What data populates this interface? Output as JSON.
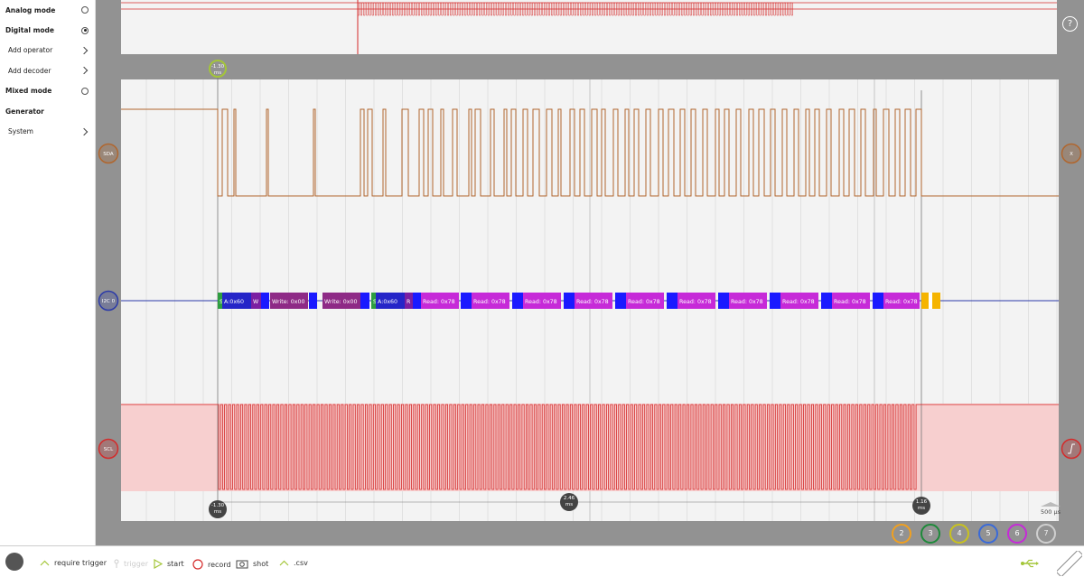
{
  "sidebar": {
    "items": [
      {
        "label": "Analog mode",
        "style": "bold",
        "control": "radio",
        "selected": false
      },
      {
        "label": "Digital mode",
        "style": "bold",
        "control": "radio",
        "selected": true
      },
      {
        "label": "Add operator",
        "style": "sub",
        "control": "chevron"
      },
      {
        "label": "Add decoder",
        "style": "sub",
        "control": "chevron"
      },
      {
        "label": "Mixed mode",
        "style": "bold",
        "control": "radio",
        "selected": false
      },
      {
        "label": "Generator",
        "style": "bold",
        "control": "none"
      },
      {
        "label": "System",
        "style": "sub",
        "control": "chevron"
      }
    ]
  },
  "help_label": "?",
  "channels": {
    "sda": {
      "label": "SDA",
      "color": "#b0662e"
    },
    "i2c": {
      "label": "I2C 0",
      "color": "#2b3aa8"
    },
    "scl": {
      "label": "SCL",
      "color": "#d42a2a"
    },
    "sda_right_label": "X"
  },
  "cursors": {
    "top": {
      "value": "-1.30",
      "unit": "ms"
    },
    "left": {
      "value": "-1.30",
      "unit": "ms"
    },
    "middle": {
      "value": "2.46",
      "unit": "ms"
    },
    "right": {
      "value": "1.16",
      "unit": "ms"
    }
  },
  "decoder_packets": [
    {
      "text": "S",
      "color": "#2e9e40"
    },
    {
      "text": "A:0x60",
      "color": "#2525c8"
    },
    {
      "text": "W",
      "color": "#7b1fa2"
    },
    {
      "text": "",
      "color": "#1a1aff"
    },
    {
      "text": "Write: 0x00",
      "color": "#8e2a86"
    },
    {
      "text": "",
      "color": "#1a1aff"
    },
    {
      "text": "Write: 0x00",
      "color": "#8e2a86"
    },
    {
      "text": "",
      "color": "#1a1aff"
    },
    {
      "text": "S",
      "color": "#2e9e40"
    },
    {
      "text": "A:0x60",
      "color": "#2525c8"
    },
    {
      "text": "R",
      "color": "#7b1fa2"
    },
    {
      "text": "",
      "color": "#1a1aff"
    },
    {
      "text": "Read: 0x78",
      "color": "#c62ad8"
    },
    {
      "text": "",
      "color": "#1a1aff"
    },
    {
      "text": "Read: 0x78",
      "color": "#c62ad8"
    },
    {
      "text": "",
      "color": "#1a1aff"
    },
    {
      "text": "Read: 0x78",
      "color": "#c62ad8"
    },
    {
      "text": "",
      "color": "#1a1aff"
    },
    {
      "text": "Read: 0x78",
      "color": "#c62ad8"
    },
    {
      "text": "",
      "color": "#1a1aff"
    },
    {
      "text": "Read: 0x78",
      "color": "#c62ad8"
    },
    {
      "text": "",
      "color": "#1a1aff"
    },
    {
      "text": "Read: 0x78",
      "color": "#c62ad8"
    },
    {
      "text": "",
      "color": "#1a1aff"
    },
    {
      "text": "Read: 0x78",
      "color": "#c62ad8"
    },
    {
      "text": "",
      "color": "#1a1aff"
    },
    {
      "text": "Read: 0x78",
      "color": "#c62ad8"
    },
    {
      "text": "",
      "color": "#1a1aff"
    },
    {
      "text": "Read: 0x78",
      "color": "#c62ad8"
    },
    {
      "text": "",
      "color": "#1a1aff"
    },
    {
      "text": "Read: 0x78",
      "color": "#c62ad8"
    },
    {
      "text": "",
      "color": "#f5b400"
    },
    {
      "text": "-",
      "color": "#ffffff"
    },
    {
      "text": "",
      "color": "#f5b400"
    }
  ],
  "timebase": "500 µs",
  "channel_buttons": [
    {
      "label": "2",
      "color": "#f0a020"
    },
    {
      "label": "3",
      "color": "#1e8a3a"
    },
    {
      "label": "4",
      "color": "#c9c21e"
    },
    {
      "label": "5",
      "color": "#3a6ad8"
    },
    {
      "label": "6",
      "color": "#c62ad8"
    },
    {
      "label": "7",
      "color": "#cfcfcf"
    }
  ],
  "bottom_bar": {
    "require_trigger": "require trigger",
    "trigger": "trigger",
    "start": "start",
    "record": "record",
    "shot": "shot",
    "csv": ".csv"
  }
}
